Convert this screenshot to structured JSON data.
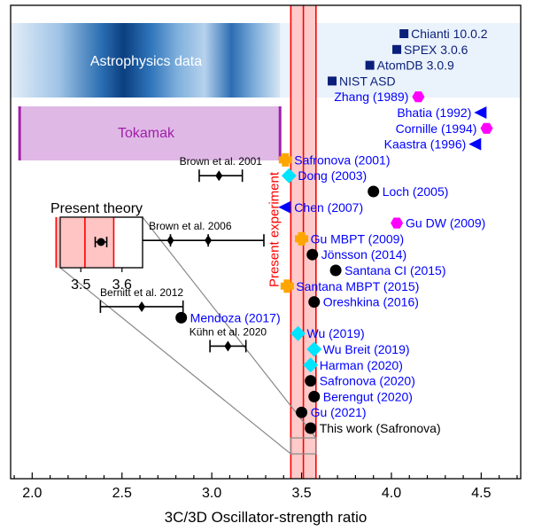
{
  "chart_data": {
    "type": "scatter",
    "xlabel": "3C/3D Oscillator-strength ratio",
    "xlim": [
      1.88,
      4.72
    ],
    "x_ticks": [
      {
        "value": 2.0,
        "label": "2.0"
      },
      {
        "value": 2.5,
        "label": "2.5"
      },
      {
        "value": 3.0,
        "label": "3.0"
      },
      {
        "value": 3.5,
        "label": "3.5"
      },
      {
        "value": 4.0,
        "label": "4.0"
      },
      {
        "value": 4.5,
        "label": "4.5"
      }
    ],
    "present_experiment": {
      "label": "Present experiment",
      "band": [
        3.44,
        3.58
      ],
      "center": 3.51,
      "color": "#ff0000"
    },
    "astrophysics": {
      "label": "Astrophysics data",
      "range": [
        1.88,
        3.38
      ],
      "points": [
        {
          "label": "Chianti 10.0.2",
          "x": 4.07,
          "row": 0.0
        },
        {
          "label": "SPEX 3.0.6",
          "x": 4.03,
          "row": 1.0
        },
        {
          "label": "AtomDB 3.0.9",
          "x": 3.88,
          "row": 2.0
        },
        {
          "label": "NIST ASD",
          "x": 3.67,
          "row": 3.0
        }
      ]
    },
    "tokamak": {
      "label": "Tokamak",
      "range": [
        1.93,
        3.38
      ]
    },
    "experiments": [
      {
        "label": "Brown et al. 2001",
        "values": [
          3.04
        ],
        "err_low": 2.93,
        "err_high": 3.17,
        "row": 9.0
      },
      {
        "label": "Brown et al. 2006",
        "values": [
          2.77,
          2.98
        ],
        "err_low": 2.47,
        "err_high": 3.29,
        "row": 13.1
      },
      {
        "label": "Bernitt et al. 2012",
        "values": [
          2.61
        ],
        "err_low": 2.38,
        "err_high": 2.84,
        "row": 17.3
      },
      {
        "label": "Kühn et al. 2020",
        "values": [
          3.09
        ],
        "err_low": 2.99,
        "err_high": 3.19,
        "row": 19.8
      }
    ],
    "theory": [
      {
        "label": "Zhang (1989)",
        "x": 4.15,
        "marker": "hexagon",
        "color": "#ff00ff",
        "side": "left",
        "row": 4.0
      },
      {
        "label": "Bhatia (1992)",
        "x": 4.5,
        "marker": "triangle-left",
        "color": "#0000ff",
        "side": "left",
        "row": 5.0
      },
      {
        "label": "Cornille (1994)",
        "x": 4.53,
        "marker": "hexagon",
        "color": "#ff00ff",
        "side": "left",
        "row": 6.0
      },
      {
        "label": "Kaastra (1996)",
        "x": 4.47,
        "marker": "triangle-left",
        "color": "#0000ff",
        "side": "left",
        "row": 7.0
      },
      {
        "label": "Safronova (2001)",
        "x": 3.41,
        "marker": "cross",
        "color": "#ffa500",
        "side": "right",
        "row": 8.0
      },
      {
        "label": "Dong (2003)",
        "x": 3.43,
        "marker": "diamond",
        "color": "#00e5ff",
        "side": "right",
        "row": 9.0
      },
      {
        "label": "Loch (2005)",
        "x": 3.9,
        "marker": "circle",
        "color": "#000000",
        "side": "right",
        "row": 10.0
      },
      {
        "label": "Chen (2007)",
        "x": 3.41,
        "marker": "triangle-left",
        "color": "#0000ff",
        "side": "right",
        "row": 11.0
      },
      {
        "label": "Gu DW (2009)",
        "x": 4.03,
        "marker": "hexagon",
        "color": "#ff00ff",
        "side": "right",
        "row": 12.0
      },
      {
        "label": "Gu MBPT (2009)",
        "x": 3.5,
        "marker": "cross",
        "color": "#ffa500",
        "side": "right",
        "row": 13.0
      },
      {
        "label": "Jönsson (2014)",
        "x": 3.56,
        "marker": "circle",
        "color": "#000000",
        "side": "right",
        "row": 14.0
      },
      {
        "label": "Santana CI (2015)",
        "x": 3.69,
        "marker": "circle",
        "color": "#000000",
        "side": "right",
        "row": 15.0
      },
      {
        "label": "Santana MBPT (2015)",
        "x": 3.42,
        "marker": "cross",
        "color": "#ffa500",
        "side": "right",
        "row": 16.0
      },
      {
        "label": "Oreshkina (2016)",
        "x": 3.57,
        "marker": "circle",
        "color": "#000000",
        "side": "right",
        "row": 17.0
      },
      {
        "label": "Mendoza (2017)",
        "x": 2.83,
        "marker": "circle",
        "color": "#000000",
        "side": "right",
        "row": 18.0
      },
      {
        "label": "Wu (2019)",
        "x": 3.48,
        "marker": "diamond",
        "color": "#00e5ff",
        "side": "right",
        "row": 19.0
      },
      {
        "label": "Wu Breit (2019)",
        "x": 3.57,
        "marker": "diamond",
        "color": "#00e5ff",
        "side": "right",
        "row": 20.0
      },
      {
        "label": "Harman (2020)",
        "x": 3.55,
        "marker": "diamond",
        "color": "#00e5ff",
        "side": "right",
        "row": 21.0
      },
      {
        "label": "Safronova (2020)",
        "x": 3.55,
        "marker": "circle",
        "color": "#000000",
        "side": "right",
        "row": 22.0
      },
      {
        "label": "Berengut (2020)",
        "x": 3.57,
        "marker": "circle",
        "color": "#000000",
        "side": "right",
        "row": 23.0
      },
      {
        "label": "Gu (2021)",
        "x": 3.5,
        "marker": "circle",
        "color": "#000000",
        "side": "right",
        "row": 24.0
      },
      {
        "label": "This work (Safronova)",
        "x": 3.55,
        "marker": "circle",
        "color": "#000000",
        "side": "right",
        "row": 25.0
      }
    ],
    "inset": {
      "title": "Present theory",
      "x_ticks": [
        {
          "value": 3.5,
          "label": "3.5"
        },
        {
          "value": 3.6,
          "label": "3.6"
        }
      ],
      "value": 3.549,
      "err_low": 3.535,
      "err_high": 3.563
    }
  }
}
